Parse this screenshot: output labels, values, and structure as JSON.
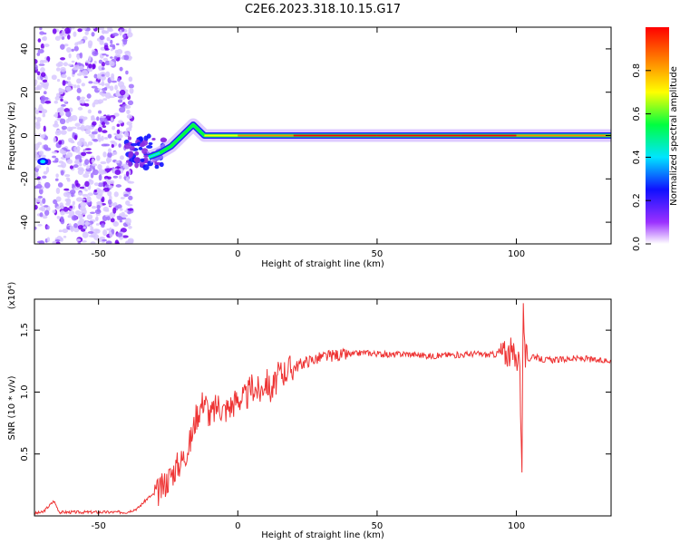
{
  "title": "C2E6.2023.318.10.15.G17",
  "chart_data": [
    {
      "type": "heatmap",
      "xlabel": "Height of straight line (km)",
      "ylabel": "Frequency (Hz)",
      "xlim": [
        -73,
        134
      ],
      "ylim": [
        -50,
        50
      ],
      "xticks": [
        -50,
        0,
        50,
        100
      ],
      "yticks": [
        -40,
        -20,
        0,
        20,
        40
      ],
      "colorbar": {
        "label": "Normalized spectral amplitude",
        "range": [
          0,
          1
        ],
        "ticks": [
          "0.0",
          "0.2",
          "0.4",
          "0.6",
          "0.8"
        ],
        "colors": [
          "#ffffff",
          "#9b30ff",
          "#1010ff",
          "#00e5ff",
          "#00ff40",
          "#ffff00",
          "#ff8000",
          "#ff0000"
        ]
      },
      "noise_region": [
        -73,
        -38
      ],
      "main_trace": {
        "x": [
          -32,
          -28,
          -24,
          -20,
          -16,
          -12,
          0,
          20,
          50,
          80,
          100,
          134
        ],
        "y": [
          -10,
          -8,
          -5,
          0,
          5,
          0,
          0,
          0,
          0,
          0,
          0,
          0
        ],
        "amplitude": [
          0.4,
          0.45,
          0.55,
          0.6,
          0.5,
          0.7,
          0.8,
          0.9,
          1.0,
          1.0,
          0.9,
          0.95
        ]
      }
    },
    {
      "type": "line",
      "xlabel": "Height of straight line (km)",
      "ylabel": "SNR (10 * v/v)",
      "y_multiplier": "(x10⁴)",
      "xlim": [
        -73,
        134
      ],
      "ylim": [
        0,
        1.75
      ],
      "xticks": [
        -50,
        0,
        50,
        100
      ],
      "yticks": [
        0.5,
        1.0,
        1.5
      ],
      "color": "#ee3333",
      "series": [
        {
          "x": [
            -73,
            -70,
            -66,
            -64,
            -60,
            -50,
            -40,
            -36,
            -32,
            -28,
            -25,
            -22,
            -20,
            -17,
            -15,
            -12,
            -10,
            -7,
            -5,
            -2,
            0,
            3,
            5,
            8,
            10,
            12,
            15,
            18,
            20,
            25,
            30,
            35,
            40,
            45,
            50,
            55,
            60,
            65,
            70,
            75,
            80,
            85,
            90,
            95,
            98,
            100,
            101,
            102,
            102.5,
            103,
            104,
            106,
            108,
            110,
            115,
            120,
            125,
            130,
            134
          ],
          "y": [
            0.02,
            0.03,
            0.12,
            0.03,
            0.03,
            0.03,
            0.03,
            0.06,
            0.15,
            0.2,
            0.3,
            0.4,
            0.45,
            0.6,
            0.8,
            0.95,
            0.8,
            0.9,
            0.85,
            0.9,
            0.95,
            0.95,
            1.05,
            1.0,
            1.1,
            1.0,
            1.15,
            1.18,
            1.2,
            1.25,
            1.28,
            1.3,
            1.3,
            1.32,
            1.31,
            1.3,
            1.31,
            1.3,
            1.29,
            1.3,
            1.3,
            1.31,
            1.3,
            1.31,
            1.32,
            1.25,
            1.35,
            0.45,
            1.75,
            1.3,
            1.25,
            1.3,
            1.27,
            1.26,
            1.26,
            1.27,
            1.27,
            1.25,
            1.26
          ]
        }
      ]
    }
  ]
}
